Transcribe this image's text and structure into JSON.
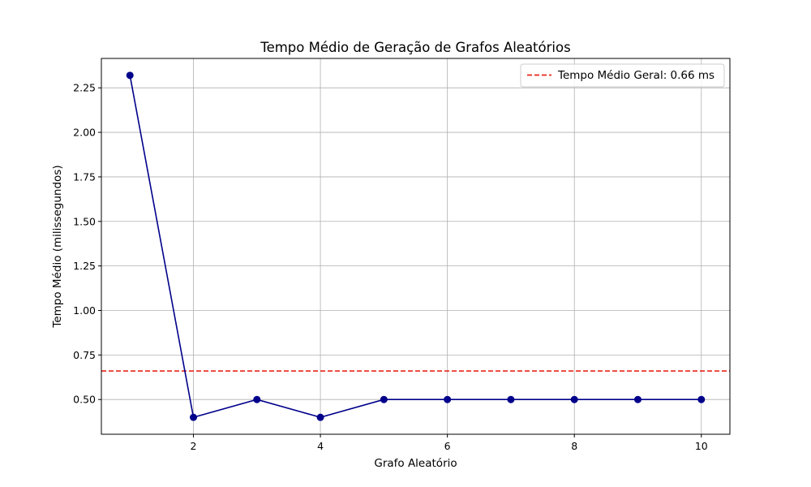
{
  "chart_data": {
    "type": "line",
    "title": "Tempo Médio de Geração de Grafos Aleatórios",
    "xlabel": "Grafo Aleatório",
    "ylabel": "Tempo Médio (milissegundos)",
    "xlim": [
      0.55,
      10.45
    ],
    "ylim": [
      0.305,
      2.415
    ],
    "x_ticks": [
      2,
      4,
      6,
      8,
      10
    ],
    "x_tick_labels": [
      "2",
      "4",
      "6",
      "8",
      "10"
    ],
    "y_ticks": [
      0.5,
      0.75,
      1.0,
      1.25,
      1.5,
      1.75,
      2.0,
      2.25
    ],
    "y_tick_labels": [
      "0.50",
      "0.75",
      "1.00",
      "1.25",
      "1.50",
      "1.75",
      "2.00",
      "2.25"
    ],
    "grid": true,
    "legend_position": "top-right",
    "x": [
      1,
      2,
      3,
      4,
      5,
      6,
      7,
      8,
      9,
      10
    ],
    "series": [
      {
        "values": [
          2.32,
          0.4,
          0.5,
          0.4,
          0.5,
          0.5,
          0.5,
          0.5,
          0.5,
          0.5
        ],
        "color": "#00008b",
        "marker": "circle"
      }
    ],
    "reference_line": {
      "y": 0.66,
      "label": "Tempo Médio Geral: 0.66 ms",
      "color": "#e8261b",
      "style": "dashed"
    }
  }
}
